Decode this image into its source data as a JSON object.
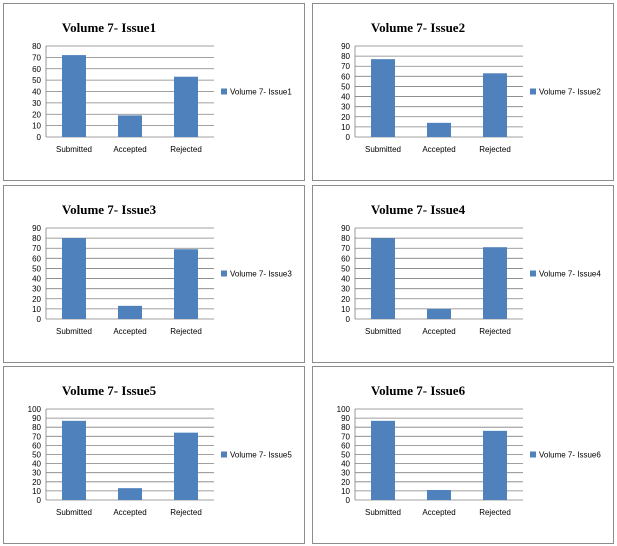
{
  "chart_data": [
    {
      "type": "bar",
      "title": "Volume 7- Issue1",
      "categories": [
        "Submitted",
        "Accepted",
        "Rejected"
      ],
      "series": [
        {
          "name": "Volume 7- Issue1",
          "values": [
            72,
            19,
            53
          ]
        }
      ],
      "ylim": [
        0,
        80
      ],
      "ystep": 10,
      "grid": true,
      "legend": "right",
      "color": "#4f81bd"
    },
    {
      "type": "bar",
      "title": "Volume 7- Issue2",
      "categories": [
        "Submitted",
        "Accepted",
        "Rejected"
      ],
      "series": [
        {
          "name": "Volume 7- Issue2",
          "values": [
            77,
            14,
            63
          ]
        }
      ],
      "ylim": [
        0,
        90
      ],
      "ystep": 10,
      "grid": true,
      "legend": "right",
      "color": "#4f81bd"
    },
    {
      "type": "bar",
      "title": "Volume 7- Issue3",
      "categories": [
        "Submitted",
        "Accepted",
        "Rejected"
      ],
      "series": [
        {
          "name": "Volume 7- Issue3",
          "values": [
            80,
            13,
            69
          ]
        }
      ],
      "ylim": [
        0,
        90
      ],
      "ystep": 10,
      "grid": true,
      "legend": "right",
      "color": "#4f81bd"
    },
    {
      "type": "bar",
      "title": "Volume 7- Issue4",
      "categories": [
        "Submitted",
        "Accepted",
        "Rejected"
      ],
      "series": [
        {
          "name": "Volume 7- Issue4",
          "values": [
            80,
            10,
            71
          ]
        }
      ],
      "ylim": [
        0,
        90
      ],
      "ystep": 10,
      "grid": true,
      "legend": "right",
      "color": "#4f81bd"
    },
    {
      "type": "bar",
      "title": "Volume 7- Issue5",
      "categories": [
        "Submitted",
        "Accepted",
        "Rejected"
      ],
      "series": [
        {
          "name": "Volume 7- Issue5",
          "values": [
            87,
            13,
            74
          ]
        }
      ],
      "ylim": [
        0,
        100
      ],
      "ystep": 10,
      "grid": true,
      "legend": "right",
      "color": "#4f81bd"
    },
    {
      "type": "bar",
      "title": "Volume 7- Issue6",
      "categories": [
        "Submitted",
        "Accepted",
        "Rejected"
      ],
      "series": [
        {
          "name": "Volume 7- Issue6",
          "values": [
            87,
            11,
            76
          ]
        }
      ],
      "ylim": [
        0,
        100
      ],
      "ystep": 10,
      "grid": true,
      "legend": "right",
      "color": "#4f81bd"
    }
  ]
}
